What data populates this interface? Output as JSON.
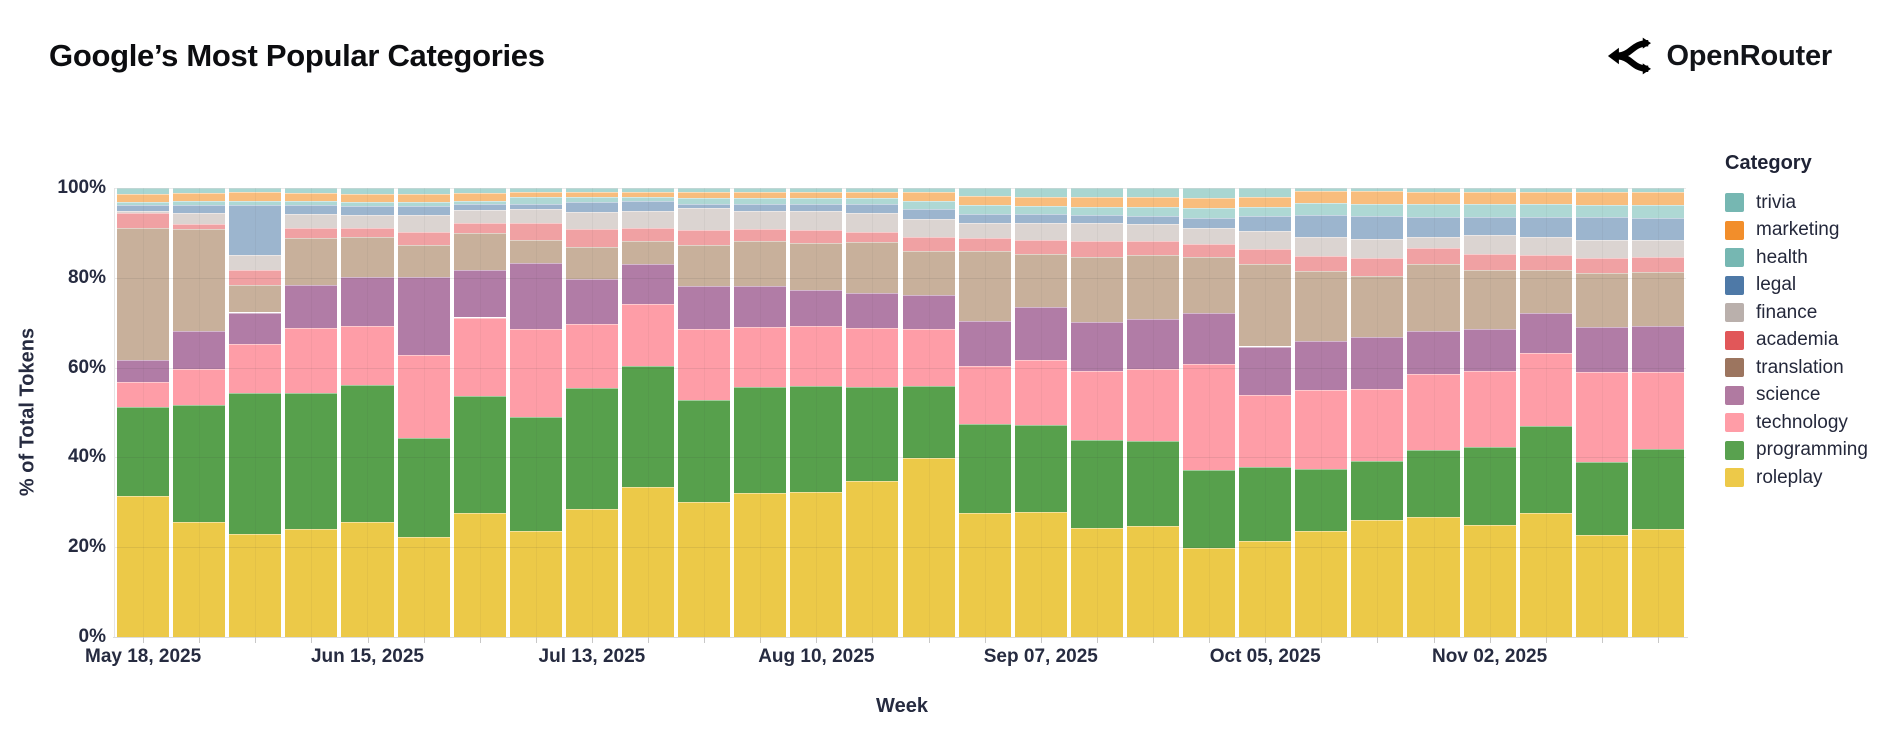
{
  "header": {
    "title": "Google’s Most Popular Categories",
    "brand": "OpenRouter"
  },
  "legend": {
    "title": "Category",
    "items": [
      {
        "label": "trivia",
        "color": "#76b7b2"
      },
      {
        "label": "marketing",
        "color": "#f28e2b"
      },
      {
        "label": "health",
        "color": "#76b7b2"
      },
      {
        "label": "legal",
        "color": "#4e79a7"
      },
      {
        "label": "finance",
        "color": "#bab0ac"
      },
      {
        "label": "academia",
        "color": "#e15759"
      },
      {
        "label": "translation",
        "color": "#9c755f"
      },
      {
        "label": "science",
        "color": "#b07aa1"
      },
      {
        "label": "technology",
        "color": "#ff9da7"
      },
      {
        "label": "programming",
        "color": "#59a14f"
      },
      {
        "label": "roleplay",
        "color": "#edc949"
      }
    ]
  },
  "chart_data": {
    "type": "bar",
    "stacked": true,
    "normalized": "percent",
    "title": "Google’s Most Popular Categories",
    "xlabel": "Week",
    "ylabel": "% of Total Tokens",
    "ylim": [
      0,
      100
    ],
    "grid": true,
    "legend_position": "right",
    "ytick_labels": [
      "0%",
      "20%",
      "40%",
      "60%",
      "80%",
      "100%"
    ],
    "x_tick_labels": [
      "May 18, 2025",
      "Jun 15, 2025",
      "Jul 13, 2025",
      "Aug 10, 2025",
      "Sep 07, 2025",
      "Oct 05, 2025",
      "Nov 02, 2025"
    ],
    "x_tick_indices": [
      0,
      4,
      8,
      12,
      16,
      20,
      24
    ],
    "categories": [
      "May 18, 2025",
      "May 25, 2025",
      "Jun 01, 2025",
      "Jun 08, 2025",
      "Jun 15, 2025",
      "Jun 22, 2025",
      "Jun 29, 2025",
      "Jul 06, 2025",
      "Jul 13, 2025",
      "Jul 20, 2025",
      "Jul 27, 2025",
      "Aug 03, 2025",
      "Aug 10, 2025",
      "Aug 17, 2025",
      "Aug 24, 2025",
      "Aug 31, 2025",
      "Sep 07, 2025",
      "Sep 14, 2025",
      "Sep 21, 2025",
      "Sep 28, 2025",
      "Oct 05, 2025",
      "Oct 12, 2025",
      "Oct 19, 2025",
      "Oct 26, 2025",
      "Nov 02, 2025",
      "Nov 09, 2025",
      "Nov 16, 2025",
      "Nov 23, 2025"
    ],
    "series": [
      {
        "name": "roleplay",
        "color": "#ecc948",
        "values": [
          31.3,
          25.6,
          22.9,
          24.0,
          25.6,
          22.2,
          27.6,
          23.6,
          28.4,
          33.3,
          30.0,
          32.0,
          32.2,
          34.9,
          39.8,
          27.6,
          27.9,
          24.3,
          24.7,
          19.9,
          21.4,
          23.7,
          26.0,
          26.7,
          24.9,
          27.6,
          22.7,
          24.0
        ]
      },
      {
        "name": "programming",
        "color": "#57a04c",
        "values": [
          20.0,
          26.0,
          31.3,
          30.2,
          30.4,
          22.0,
          26.2,
          25.5,
          26.9,
          27.1,
          22.7,
          23.7,
          23.6,
          20.9,
          16.2,
          19.9,
          19.3,
          19.6,
          18.9,
          17.4,
          16.5,
          13.8,
          13.2,
          14.9,
          17.4,
          19.3,
          16.3,
          17.8
        ]
      },
      {
        "name": "technology",
        "color": "#fe9da7",
        "values": [
          5.6,
          8.0,
          11.1,
          14.5,
          13.1,
          18.5,
          17.5,
          19.5,
          14.4,
          13.7,
          15.9,
          13.3,
          13.5,
          13.2,
          12.6,
          12.9,
          14.5,
          15.4,
          16.1,
          23.5,
          16.0,
          17.5,
          16.1,
          17.0,
          17.0,
          16.3,
          20.0,
          17.2
        ]
      },
      {
        "name": "science",
        "color": "#b17ca6",
        "values": [
          4.9,
          8.4,
          6.9,
          9.7,
          10.9,
          17.3,
          10.7,
          14.8,
          10.0,
          8.9,
          9.6,
          9.2,
          8.0,
          7.7,
          7.6,
          10.0,
          11.9,
          10.8,
          11.0,
          11.3,
          10.8,
          11.0,
          11.6,
          9.6,
          9.3,
          8.9,
          10.0,
          10.2
        ]
      },
      {
        "name": "translation",
        "color": "#c8b09b",
        "values": [
          29.3,
          22.7,
          6.2,
          10.3,
          9.1,
          7.1,
          8.2,
          5.0,
          7.0,
          5.0,
          9.1,
          10.0,
          10.4,
          11.4,
          9.7,
          15.5,
          11.7,
          14.6,
          14.4,
          12.6,
          18.3,
          15.6,
          13.5,
          14.9,
          13.1,
          9.5,
          12.0,
          12.2
        ]
      },
      {
        "name": "academia",
        "color": "#f0a1a3",
        "values": [
          3.3,
          1.1,
          3.2,
          2.4,
          2.0,
          2.9,
          2.2,
          3.7,
          4.1,
          3.1,
          3.4,
          2.6,
          3.0,
          2.3,
          3.1,
          2.9,
          3.1,
          3.5,
          3.0,
          2.9,
          3.5,
          3.3,
          4.0,
          3.5,
          3.6,
          3.3,
          3.4,
          3.2
        ]
      },
      {
        "name": "finance",
        "color": "#dbd4d1",
        "values": [
          0.5,
          2.6,
          3.3,
          3.1,
          2.9,
          3.8,
          2.9,
          3.2,
          3.7,
          3.6,
          4.8,
          4.1,
          4.2,
          4.3,
          4.0,
          3.5,
          3.9,
          3.9,
          3.7,
          3.4,
          3.9,
          4.1,
          4.2,
          2.4,
          4.3,
          3.9,
          4.0,
          3.8
        ]
      },
      {
        "name": "legal",
        "color": "#9cb5ce",
        "values": [
          1.3,
          1.8,
          11.3,
          1.9,
          2.0,
          2.0,
          1.3,
          1.2,
          2.2,
          2.2,
          0.9,
          1.5,
          1.5,
          1.9,
          2.3,
          1.9,
          1.9,
          1.9,
          1.9,
          2.4,
          3.3,
          5.0,
          5.2,
          4.6,
          4.0,
          4.6,
          5.0,
          5.0
        ]
      },
      {
        "name": "health",
        "color": "#aed8d4",
        "values": [
          0.7,
          0.7,
          0.7,
          0.8,
          0.8,
          0.8,
          0.7,
          1.4,
          1.1,
          0.9,
          1.3,
          1.3,
          1.3,
          1.3,
          1.8,
          2.0,
          1.8,
          1.8,
          1.9,
          2.1,
          2.0,
          2.7,
          2.7,
          2.8,
          2.8,
          2.8,
          2.8,
          2.9
        ]
      },
      {
        "name": "marketing",
        "color": "#f8bd7d",
        "values": [
          1.8,
          1.8,
          2.0,
          1.8,
          1.8,
          1.8,
          1.7,
          1.3,
          1.3,
          1.3,
          1.3,
          1.3,
          1.3,
          1.3,
          2.1,
          2.0,
          2.0,
          2.2,
          2.2,
          2.2,
          2.2,
          2.6,
          2.8,
          2.8,
          2.8,
          2.8,
          2.9,
          2.9
        ]
      },
      {
        "name": "trivia",
        "color": "#a9d6d1",
        "values": [
          1.3,
          1.2,
          1.0,
          1.2,
          1.3,
          1.4,
          1.2,
          0.8,
          0.8,
          0.8,
          1.0,
          1.0,
          1.0,
          1.0,
          0.8,
          1.8,
          2.0,
          2.0,
          2.1,
          2.3,
          2.1,
          0.7,
          0.7,
          0.8,
          0.8,
          0.8,
          0.8,
          0.8
        ]
      }
    ]
  }
}
